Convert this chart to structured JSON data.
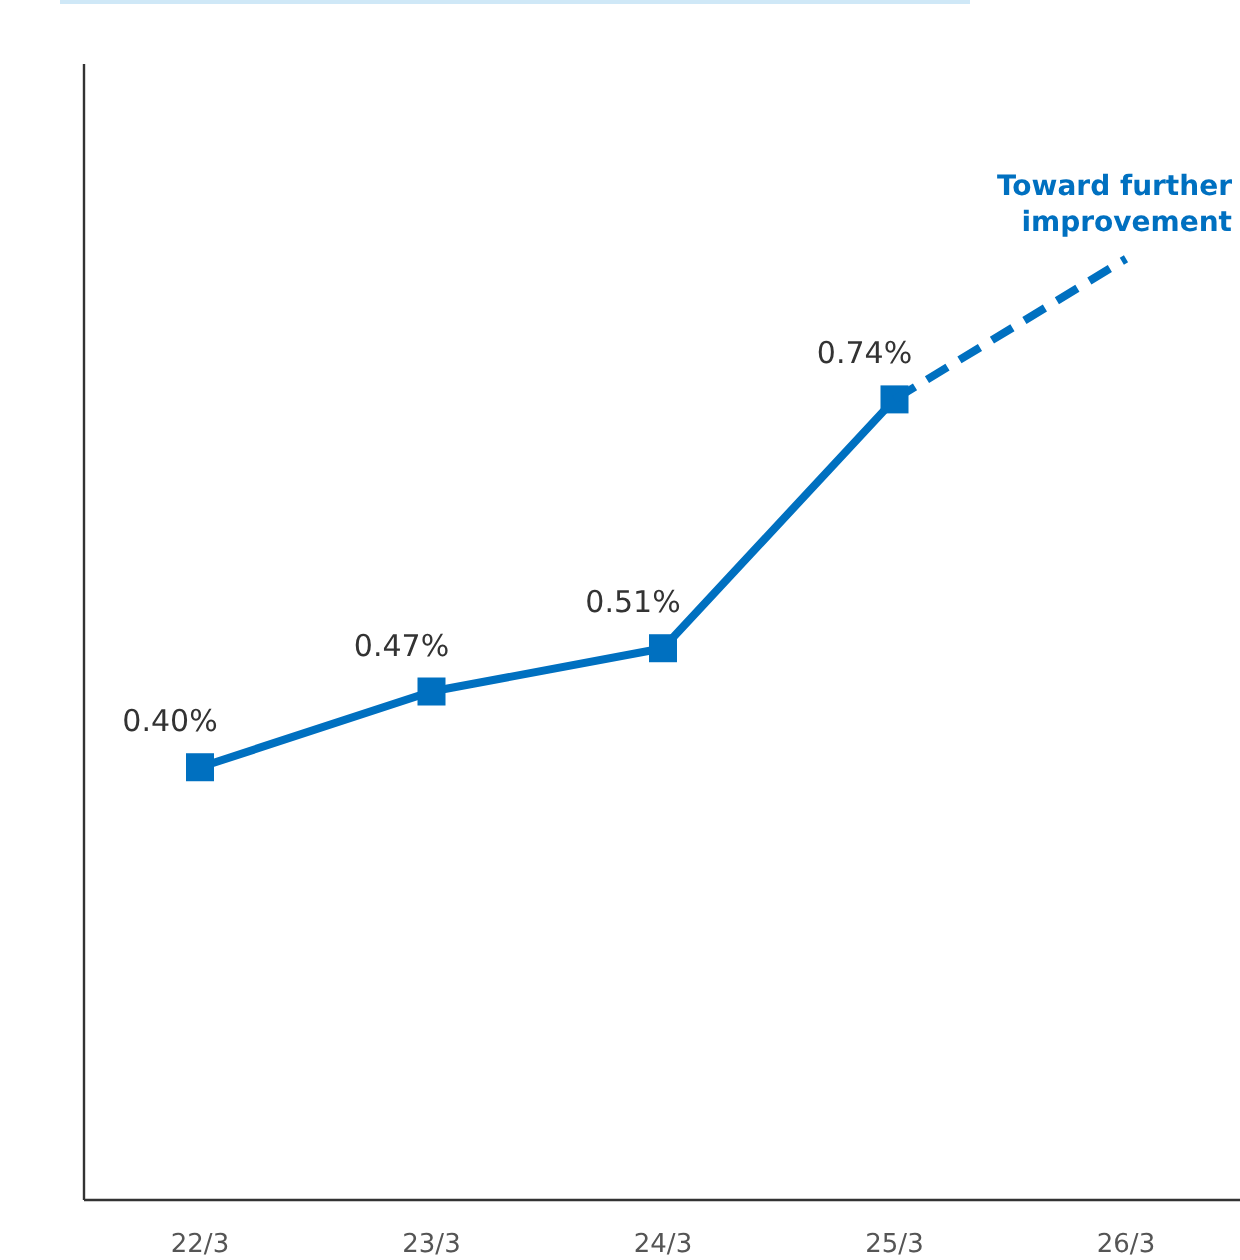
{
  "chart_data": {
    "type": "line",
    "categories": [
      "22/3",
      "23/3",
      "24/3",
      "25/3",
      "26/3"
    ],
    "ylim": [
      0,
      1.05
    ],
    "tick_labels": "x",
    "series": [
      {
        "color": "#0070c0",
        "values": [
          0.4,
          0.47,
          0.51,
          0.74,
          null
        ],
        "value_labels": [
          "0.40%",
          "0.47%",
          "0.51%",
          "0.74%",
          null
        ],
        "marker": "square",
        "line_style": "solid"
      },
      {
        "color": "#0070c0",
        "values": [
          null,
          null,
          null,
          0.74,
          0.87
        ],
        "marker": "none",
        "line_style": "dashed"
      }
    ],
    "annotations": [
      "Toward further improvement"
    ]
  }
}
